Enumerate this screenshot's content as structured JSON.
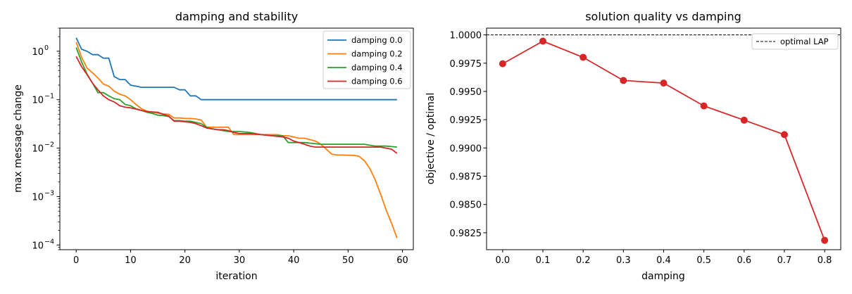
{
  "chart_data": [
    {
      "type": "line",
      "title": "damping and stability",
      "xlabel": "iteration",
      "ylabel": "max message change",
      "xlim": [
        -3,
        62
      ],
      "ylim": [
        8e-05,
        3
      ],
      "yscale": "log",
      "x_ticks": [
        0,
        10,
        20,
        30,
        40,
        50,
        60
      ],
      "y_ticks": [
        {
          "value": 0.0001,
          "base": "10",
          "exp": "−4"
        },
        {
          "value": 0.001,
          "base": "10",
          "exp": "−3"
        },
        {
          "value": 0.01,
          "base": "10",
          "exp": "−2"
        },
        {
          "value": 0.1,
          "base": "10",
          "exp": "−1"
        },
        {
          "value": 1,
          "base": "10",
          "exp": "0"
        }
      ],
      "grid": false,
      "legend": "top-right",
      "series": [
        {
          "name": "damping 0.0",
          "color": "#1f77b4",
          "x": [
            0,
            1,
            2,
            3,
            4,
            5,
            6,
            7,
            8,
            9,
            10,
            11,
            12,
            13,
            14,
            15,
            16,
            17,
            18,
            19,
            20,
            21,
            22,
            23,
            24,
            25,
            30,
            35,
            40,
            45,
            50,
            55,
            59
          ],
          "y": [
            1.9,
            1.1,
            1.0,
            0.85,
            0.85,
            0.72,
            0.72,
            0.3,
            0.26,
            0.26,
            0.2,
            0.19,
            0.18,
            0.18,
            0.18,
            0.18,
            0.18,
            0.18,
            0.18,
            0.16,
            0.16,
            0.12,
            0.12,
            0.1,
            0.1,
            0.1,
            0.1,
            0.1,
            0.1,
            0.1,
            0.1,
            0.1,
            0.1
          ]
        },
        {
          "name": "damping 0.2",
          "color": "#ff7f0e",
          "x": [
            0,
            1,
            2,
            3,
            4,
            5,
            6,
            7,
            8,
            9,
            10,
            11,
            12,
            13,
            14,
            15,
            16,
            17,
            18,
            19,
            20,
            21,
            22,
            23,
            24,
            25,
            26,
            27,
            28,
            29,
            30,
            31,
            32,
            33,
            34,
            35,
            36,
            37,
            38,
            39,
            40,
            41,
            42,
            43,
            44,
            45,
            46,
            47,
            48,
            49,
            50,
            51,
            52,
            53,
            54,
            55,
            56,
            57,
            58,
            59
          ],
          "y": [
            1.55,
            0.75,
            0.45,
            0.36,
            0.28,
            0.21,
            0.19,
            0.15,
            0.13,
            0.12,
            0.1,
            0.08,
            0.065,
            0.058,
            0.055,
            0.053,
            0.051,
            0.05,
            0.042,
            0.042,
            0.041,
            0.041,
            0.04,
            0.038,
            0.027,
            0.027,
            0.027,
            0.027,
            0.027,
            0.019,
            0.019,
            0.019,
            0.019,
            0.019,
            0.019,
            0.019,
            0.019,
            0.019,
            0.018,
            0.018,
            0.017,
            0.016,
            0.016,
            0.015,
            0.014,
            0.012,
            0.0095,
            0.0075,
            0.0072,
            0.0072,
            0.0071,
            0.0071,
            0.0068,
            0.0055,
            0.0038,
            0.0022,
            0.0011,
            0.00053,
            0.00028,
            0.00014
          ]
        },
        {
          "name": "damping 0.4",
          "color": "#2ca02c",
          "x": [
            0,
            1,
            2,
            3,
            4,
            5,
            6,
            7,
            8,
            9,
            10,
            11,
            12,
            13,
            14,
            15,
            16,
            17,
            18,
            19,
            20,
            21,
            22,
            23,
            24,
            25,
            26,
            27,
            28,
            29,
            30,
            32,
            34,
            36,
            38,
            39,
            40,
            42,
            45,
            48,
            50,
            53,
            55,
            57,
            59
          ],
          "y": [
            1.2,
            0.6,
            0.34,
            0.22,
            0.14,
            0.14,
            0.12,
            0.105,
            0.1,
            0.08,
            0.075,
            0.065,
            0.06,
            0.055,
            0.052,
            0.048,
            0.047,
            0.045,
            0.037,
            0.037,
            0.036,
            0.036,
            0.034,
            0.032,
            0.027,
            0.025,
            0.024,
            0.023,
            0.022,
            0.022,
            0.022,
            0.021,
            0.019,
            0.018,
            0.018,
            0.013,
            0.013,
            0.013,
            0.012,
            0.012,
            0.012,
            0.012,
            0.011,
            0.011,
            0.0105
          ]
        },
        {
          "name": "damping 0.6",
          "color": "#d62728",
          "x": [
            0,
            1,
            2,
            3,
            4,
            5,
            6,
            7,
            8,
            9,
            10,
            11,
            12,
            13,
            14,
            15,
            16,
            17,
            18,
            19,
            20,
            21,
            22,
            23,
            24,
            25,
            26,
            27,
            28,
            29,
            30,
            32,
            34,
            36,
            38,
            39,
            40,
            41,
            42,
            43,
            44,
            45,
            46,
            47,
            48,
            50,
            52,
            54,
            56,
            58,
            59
          ],
          "y": [
            0.78,
            0.48,
            0.33,
            0.22,
            0.16,
            0.12,
            0.1,
            0.09,
            0.075,
            0.07,
            0.068,
            0.064,
            0.06,
            0.057,
            0.056,
            0.055,
            0.05,
            0.046,
            0.036,
            0.036,
            0.035,
            0.034,
            0.032,
            0.029,
            0.026,
            0.025,
            0.024,
            0.024,
            0.023,
            0.021,
            0.02,
            0.02,
            0.019,
            0.018,
            0.017,
            0.016,
            0.014,
            0.013,
            0.012,
            0.011,
            0.0105,
            0.0105,
            0.0105,
            0.0105,
            0.0105,
            0.0105,
            0.0105,
            0.0105,
            0.0105,
            0.0095,
            0.0078
          ]
        }
      ]
    },
    {
      "type": "line",
      "title": "solution quality vs damping",
      "xlabel": "damping",
      "ylabel": "objective / optimal",
      "xlim": [
        -0.04,
        0.84
      ],
      "ylim": [
        0.981,
        1.0006
      ],
      "x_ticks": [
        "0.0",
        "0.1",
        "0.2",
        "0.3",
        "0.4",
        "0.5",
        "0.6",
        "0.7",
        "0.8"
      ],
      "y_ticks": [
        "0.9825",
        "0.9850",
        "0.9875",
        "0.9900",
        "0.9925",
        "0.9950",
        "0.9975",
        "1.0000"
      ],
      "grid": false,
      "legend": "top-right",
      "series": [
        {
          "name": "",
          "color": "#d62728",
          "x": [
            0.0,
            0.1,
            0.2,
            0.3,
            0.4,
            0.5,
            0.6,
            0.7,
            0.8
          ],
          "y": [
            0.99745,
            0.99945,
            0.99802,
            0.99597,
            0.99574,
            0.99372,
            0.99246,
            0.99118,
            0.98183
          ]
        }
      ],
      "reference_line": {
        "name": "optimal LAP",
        "y": 1.0,
        "style": "dashed",
        "color": "#000000"
      }
    }
  ]
}
